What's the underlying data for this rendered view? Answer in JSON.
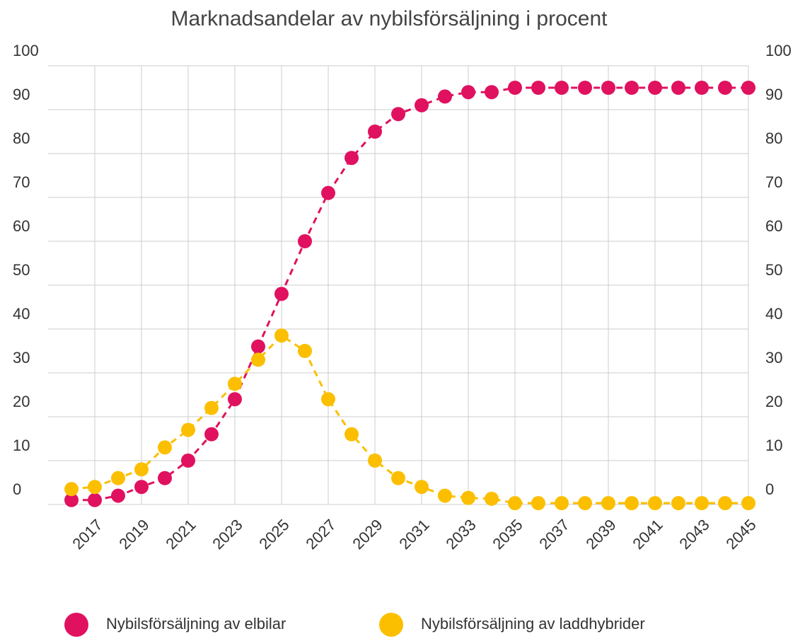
{
  "chart_data": {
    "type": "line",
    "title": "Marknadsandelar av nybilsförsäljning i procent",
    "x": [
      2016,
      2017,
      2018,
      2019,
      2020,
      2021,
      2022,
      2023,
      2024,
      2025,
      2026,
      2027,
      2028,
      2029,
      2030,
      2031,
      2032,
      2033,
      2034,
      2035,
      2036,
      2037,
      2038,
      2039,
      2040,
      2041,
      2042,
      2043,
      2044,
      2045
    ],
    "series": [
      {
        "name": "Nybilsförsäljning av elbilar",
        "color": "#e0115f",
        "values": [
          1,
          1,
          2,
          4,
          6,
          10,
          16,
          24,
          36,
          48,
          60,
          71,
          79,
          85,
          89,
          91,
          93,
          94,
          94,
          95,
          95,
          95,
          95,
          95,
          95,
          95,
          95,
          95,
          95,
          95
        ]
      },
      {
        "name": "Nybilsförsäljning av laddhybrider",
        "color": "#fbbf00",
        "values": [
          3.5,
          4,
          6,
          8,
          13,
          17,
          22,
          27.5,
          33,
          38.5,
          35,
          24,
          16,
          10,
          6,
          4,
          2,
          1.5,
          1.3,
          0.3,
          0.3,
          0.3,
          0.3,
          0.3,
          0.3,
          0.3,
          0.3,
          0.3,
          0.3,
          0.3
        ]
      }
    ],
    "xlim": [
      2015,
      2045
    ],
    "xticks": [
      2017,
      2019,
      2021,
      2023,
      2025,
      2027,
      2029,
      2031,
      2033,
      2035,
      2037,
      2039,
      2041,
      2043,
      2045
    ],
    "ylim": [
      0,
      100
    ],
    "yticks": [
      0,
      10,
      20,
      30,
      40,
      50,
      60,
      70,
      80,
      90,
      100
    ],
    "y2lim": [
      0,
      100
    ],
    "y2ticks": [
      0,
      10,
      20,
      30,
      40,
      50,
      60,
      70,
      80,
      90,
      100
    ],
    "grid": true
  }
}
